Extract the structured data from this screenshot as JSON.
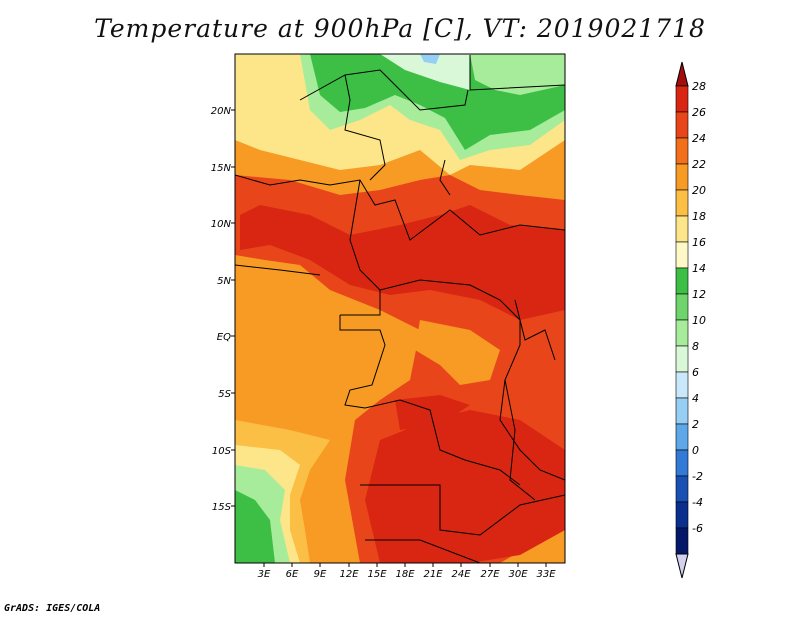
{
  "title": "Temperature at 900hPa [C], VT: 2019021718",
  "credit": "GrADS: IGES/COLA",
  "map": {
    "lat_labels": [
      "20N",
      "15N",
      "10N",
      "5N",
      "EQ",
      "5S",
      "10S",
      "15S"
    ],
    "lon_labels": [
      "3E",
      "6E",
      "9E",
      "12E",
      "15E",
      "18E",
      "21E",
      "24E",
      "27E",
      "30E",
      "33E"
    ]
  },
  "colorbar": {
    "labels": [
      "28",
      "26",
      "24",
      "22",
      "20",
      "18",
      "16",
      "14",
      "12",
      "10",
      "8",
      "6",
      "4",
      "2",
      "0",
      "-2",
      "-4",
      "-6"
    ],
    "colors": [
      "#a50d0d",
      "#d82612",
      "#e8461a",
      "#f26f1c",
      "#f79b24",
      "#fbbf46",
      "#fde68a",
      "#fff9c8",
      "#3dbf45",
      "#6fd46b",
      "#a6ec9a",
      "#d9f8d7",
      "#c9e9fa",
      "#96cff3",
      "#5ea8ea",
      "#3379d6",
      "#1a50b4",
      "#0b2f8c",
      "#051768",
      "#d2d2f0"
    ]
  }
}
